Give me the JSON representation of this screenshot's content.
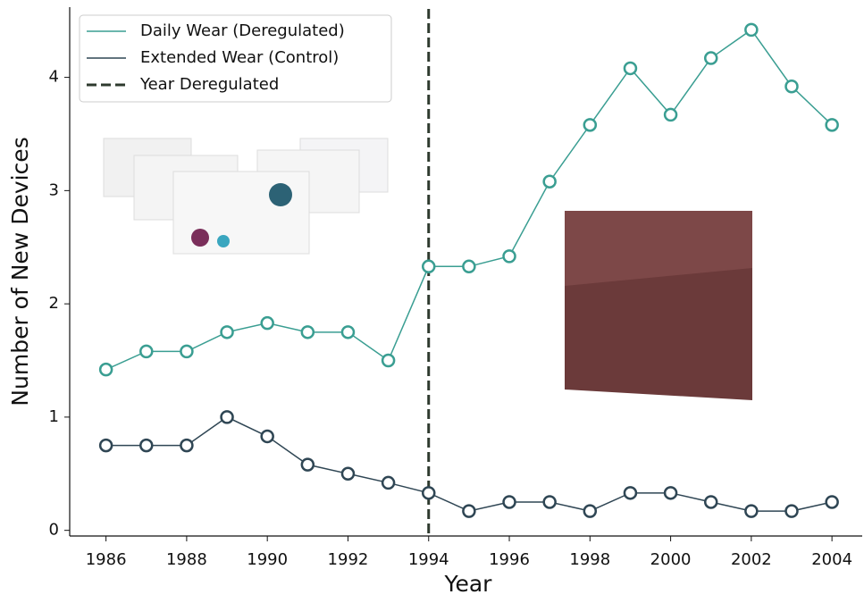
{
  "chart_data": {
    "type": "line",
    "xlabel": "Year",
    "ylabel": "Number of New Devices",
    "x": [
      1986,
      1987,
      1988,
      1989,
      1990,
      1991,
      1992,
      1993,
      1994,
      1995,
      1996,
      1997,
      1998,
      1999,
      2000,
      2001,
      2002,
      2003,
      2004
    ],
    "series": [
      {
        "name": "Daily Wear (Deregulated)",
        "color": "#3a9e92",
        "values": [
          1.42,
          1.58,
          1.58,
          1.75,
          1.83,
          1.75,
          1.75,
          1.5,
          2.33,
          2.33,
          2.42,
          3.08,
          3.58,
          4.08,
          3.67,
          4.17,
          4.42,
          3.92,
          3.58
        ]
      },
      {
        "name": "Extended Wear (Control)",
        "color": "#2f4654",
        "values": [
          0.75,
          0.75,
          0.75,
          1.0,
          0.83,
          0.58,
          0.5,
          0.42,
          0.33,
          0.17,
          0.25,
          0.25,
          0.17,
          0.33,
          0.33,
          0.25,
          0.17,
          0.17,
          0.25
        ]
      }
    ],
    "vline": {
      "x": 1994,
      "label": "Year Deregulated",
      "color": "#2e3a2e"
    },
    "xlim": [
      1985.1,
      2004.75
    ],
    "xticks": [
      1986,
      1988,
      1990,
      1992,
      1994,
      1996,
      1998,
      2000,
      2002,
      2004
    ],
    "ylim": [
      -0.05,
      4.62
    ],
    "yticks": [
      0,
      1,
      2,
      3,
      4
    ],
    "legend": "upper left",
    "grid": false
  }
}
